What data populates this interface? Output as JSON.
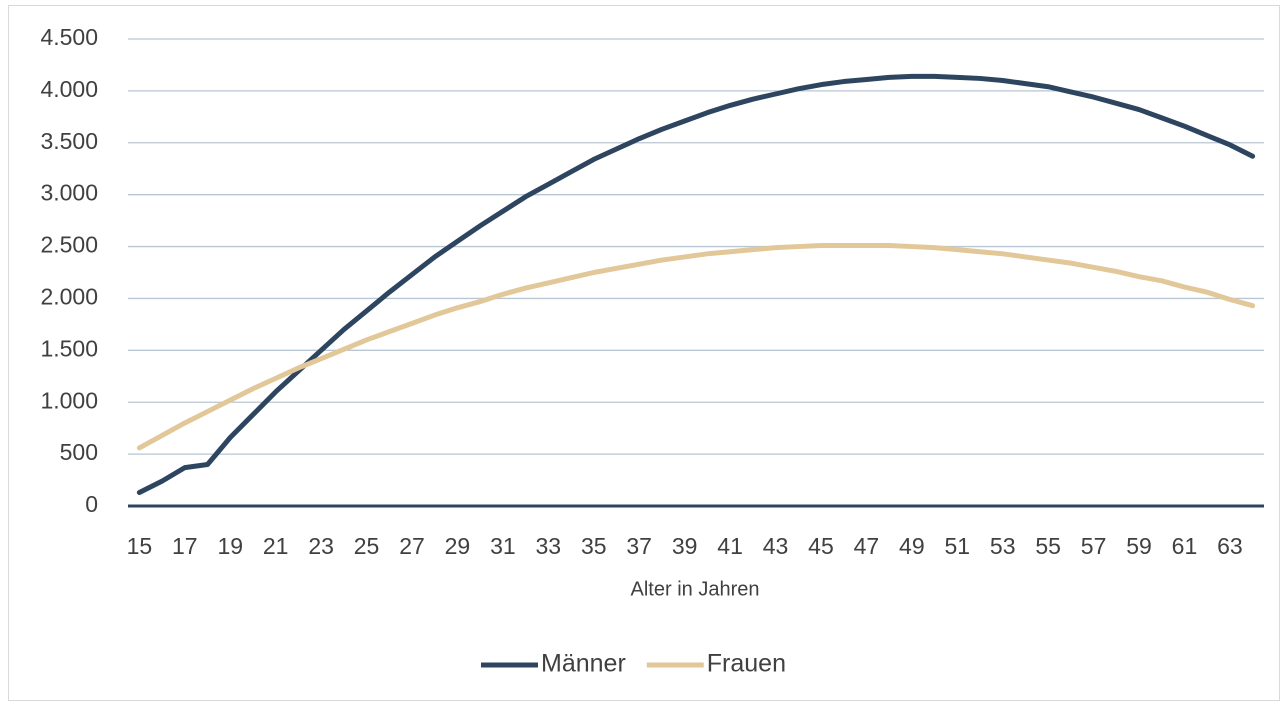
{
  "chart_data": {
    "type": "line",
    "x_label": "Alter in Jahren",
    "categories": [
      "15",
      null,
      "17",
      null,
      "19",
      null,
      "21",
      null,
      "23",
      null,
      "25",
      null,
      "27",
      null,
      "29",
      null,
      "31",
      null,
      "33",
      null,
      "35",
      null,
      "37",
      null,
      "39",
      null,
      "41",
      null,
      "43",
      null,
      "45",
      null,
      "47",
      null,
      "49",
      null,
      "51",
      null,
      "53",
      null,
      "55",
      null,
      "57",
      null,
      "59",
      null,
      "61",
      null,
      "63",
      null
    ],
    "series": [
      {
        "name": "Männer",
        "color": "#2e4560",
        "values": [
          130,
          240,
          370,
          400,
          660,
          880,
          1100,
          1300,
          1500,
          1700,
          1880,
          2060,
          2230,
          2400,
          2550,
          2700,
          2840,
          2980,
          3100,
          3220,
          3340,
          3440,
          3540,
          3630,
          3710,
          3790,
          3860,
          3920,
          3970,
          4020,
          4060,
          4090,
          4110,
          4130,
          4140,
          4140,
          4130,
          4120,
          4100,
          4070,
          4040,
          3990,
          3940,
          3880,
          3820,
          3740,
          3660,
          3570,
          3480,
          3370
        ]
      },
      {
        "name": "Frauen",
        "color": "#e2c799",
        "values": [
          560,
          680,
          800,
          910,
          1020,
          1130,
          1230,
          1330,
          1420,
          1510,
          1600,
          1680,
          1760,
          1840,
          1910,
          1970,
          2040,
          2100,
          2150,
          2200,
          2250,
          2290,
          2330,
          2370,
          2400,
          2430,
          2450,
          2470,
          2490,
          2500,
          2510,
          2510,
          2510,
          2510,
          2500,
          2490,
          2470,
          2450,
          2430,
          2400,
          2370,
          2340,
          2300,
          2260,
          2210,
          2170,
          2110,
          2060,
          1990,
          1930
        ]
      }
    ],
    "ylim": [
      0,
      4500
    ],
    "yticks": [
      0,
      500,
      {
        "value": 1000,
        "label": "1.000"
      },
      {
        "value": 1500,
        "label": "1.500"
      },
      {
        "value": 2000,
        "label": "2.000"
      },
      {
        "value": 2500,
        "label": "2.500"
      },
      {
        "value": 3000,
        "label": "3.000"
      },
      {
        "value": 3500,
        "label": "3.500"
      },
      {
        "value": 4000,
        "label": "4.000"
      },
      {
        "value": 4500,
        "label": "4.500"
      }
    ],
    "grid": true,
    "legend": "bottom"
  }
}
